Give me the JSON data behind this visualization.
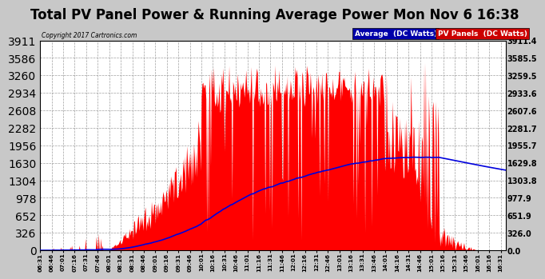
{
  "title": "Total PV Panel Power & Running Average Power Mon Nov 6 16:38",
  "copyright": "Copyright 2017 Cartronics.com",
  "legend_avg": "Average  (DC Watts)",
  "legend_pv": "PV Panels  (DC Watts)",
  "yticks": [
    0.0,
    326.0,
    651.9,
    977.9,
    1303.8,
    1629.8,
    1955.7,
    2281.7,
    2607.6,
    2933.6,
    3259.5,
    3585.5,
    3911.4
  ],
  "ymax": 3911.4,
  "bg_color": "#c8c8c8",
  "plot_bg_color": "#ffffff",
  "pv_color": "#ff0000",
  "avg_color": "#0000dd",
  "grid_color": "#888888",
  "title_fontsize": 12,
  "legend_bg_avg": "#0000aa",
  "legend_bg_pv": "#cc0000"
}
